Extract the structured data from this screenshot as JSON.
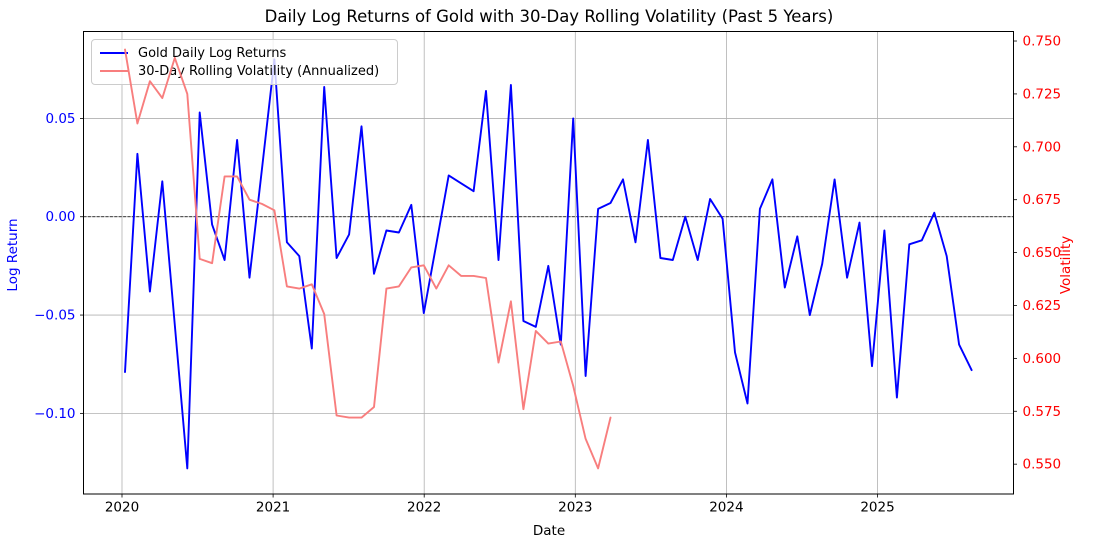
{
  "title": "Daily Log Returns of Gold with 30-Day Rolling Volatility (Past 5 Years)",
  "colors": {
    "left_axis": "#0000ff",
    "right_axis": "#ff0000",
    "blue_line": "#0000ff",
    "volatility_line": "#f87e7e",
    "grid": "#b0b0b0",
    "spine": "#000000",
    "zero_line": "#000000",
    "x_tick_label": "#000000",
    "legend_border": "#cccccc"
  },
  "chart_data": {
    "type": "line",
    "title": "Daily Log Returns of Gold with 30-Day Rolling Volatility (Past 5 Years)",
    "xlabel": "Date",
    "ylabel_left": "Log Return",
    "ylabel_right": "Volatility",
    "grid": true,
    "zero_line": true,
    "legend_position": "upper left",
    "x_ticks": [
      2020,
      2021,
      2022,
      2023,
      2024,
      2025
    ],
    "x_tick_labels": [
      "2020",
      "2021",
      "2022",
      "2023",
      "2024",
      "2025"
    ],
    "y_left_ticks": [
      0.05,
      0.0,
      -0.05,
      -0.1
    ],
    "y_left_tick_labels": [
      "0.05",
      "0.00",
      "−0.05",
      "−0.10"
    ],
    "y_right_ticks": [
      0.75,
      0.725,
      0.7,
      0.675,
      0.65,
      0.625,
      0.6,
      0.575,
      0.55
    ],
    "y_right_tick_labels": [
      "0.750",
      "0.725",
      "0.700",
      "0.675",
      "0.650",
      "0.625",
      "0.600",
      "0.575",
      "0.550"
    ],
    "ylim_left": [
      -0.141,
      0.0942
    ],
    "ylim_right": [
      0.5359,
      0.7545
    ],
    "series": [
      {
        "name": "Gold Daily Log Returns",
        "axis": "left",
        "color": "#0000ff",
        "dates": [
          "2020-01",
          "2020-02",
          "2020-03",
          "2020-04",
          "2020-05",
          "2020-06",
          "2020-07",
          "2020-08",
          "2020-09",
          "2020-10",
          "2020-11",
          "2020-12",
          "2021-01",
          "2021-02",
          "2021-03",
          "2021-04",
          "2021-05",
          "2021-06",
          "2021-07",
          "2021-08",
          "2021-09",
          "2021-10",
          "2021-11",
          "2021-12",
          "2022-01",
          "2022-02",
          "2022-03",
          "2022-04",
          "2022-05",
          "2022-06",
          "2022-07",
          "2022-08",
          "2022-09",
          "2022-10",
          "2022-11",
          "2022-12",
          "2023-01",
          "2023-02",
          "2023-03",
          "2023-04",
          "2023-05",
          "2023-06",
          "2023-07",
          "2023-08",
          "2023-09",
          "2023-10",
          "2023-11",
          "2023-12",
          "2024-01",
          "2024-02",
          "2024-03",
          "2024-04",
          "2024-05",
          "2024-06",
          "2024-07",
          "2024-08",
          "2024-09",
          "2024-10",
          "2024-11",
          "2024-12",
          "2025-01",
          "2025-02",
          "2025-03",
          "2025-04",
          "2025-05",
          "2025-06",
          "2025-07",
          "2025-08",
          "2025-09"
        ],
        "values": [
          -0.079,
          0.032,
          -0.038,
          0.018,
          -0.055,
          -0.128,
          0.053,
          -0.004,
          -0.022,
          0.039,
          -0.031,
          0.024,
          0.08,
          -0.013,
          -0.02,
          -0.067,
          0.066,
          -0.021,
          -0.009,
          0.046,
          -0.029,
          -0.007,
          -0.008,
          0.006,
          -0.049,
          -0.014,
          0.021,
          0.017,
          0.013,
          0.064,
          -0.022,
          0.067,
          -0.053,
          -0.056,
          -0.025,
          -0.065,
          0.05,
          -0.081,
          0.004,
          0.007,
          0.019,
          -0.013,
          0.039,
          -0.021,
          -0.022,
          0.0,
          -0.022,
          0.009,
          -0.001,
          -0.069,
          -0.095,
          0.004,
          0.019,
          -0.036,
          -0.01,
          -0.05,
          -0.024,
          0.019,
          -0.031,
          -0.003,
          -0.076,
          -0.007,
          -0.092,
          -0.014,
          -0.012,
          0.002,
          -0.02,
          -0.065,
          -0.078
        ]
      },
      {
        "name": "30-Day Rolling Volatility (Annualized)",
        "axis": "right",
        "color": "#f87e7e",
        "dates": [
          "2020-01",
          "2020-02",
          "2020-03",
          "2020-04",
          "2020-05",
          "2020-06",
          "2020-07",
          "2020-08",
          "2020-09",
          "2020-10",
          "2020-11",
          "2020-12",
          "2021-01",
          "2021-02",
          "2021-03",
          "2021-04",
          "2021-05",
          "2021-06",
          "2021-07",
          "2021-08",
          "2021-09",
          "2021-10",
          "2021-11",
          "2021-12",
          "2022-01",
          "2022-02",
          "2022-03",
          "2022-04",
          "2022-05",
          "2022-06",
          "2022-07",
          "2022-08",
          "2022-09",
          "2022-10",
          "2022-11",
          "2022-12",
          "2023-01",
          "2023-02",
          "2023-03",
          "2023-04"
        ],
        "values": [
          0.746,
          0.711,
          0.731,
          0.723,
          0.742,
          0.725,
          0.647,
          0.645,
          0.686,
          0.686,
          0.675,
          0.673,
          0.67,
          0.634,
          0.633,
          0.635,
          0.621,
          0.573,
          0.572,
          0.572,
          0.577,
          0.633,
          0.634,
          0.643,
          0.644,
          0.633,
          0.644,
          0.639,
          0.639,
          0.638,
          0.598,
          0.627,
          0.576,
          0.613,
          0.607,
          0.608,
          0.587,
          0.562,
          0.548,
          0.572
        ]
      }
    ]
  },
  "legend": {
    "entries": [
      "Gold Daily Log Returns",
      "30-Day Rolling Volatility (Annualized)"
    ]
  }
}
